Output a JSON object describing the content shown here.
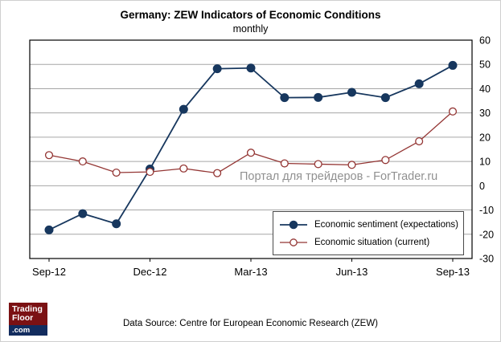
{
  "title": "Germany: ZEW Indicators of Economic Conditions",
  "subtitle": "monthly",
  "watermark": "Портал для трейдеров - ForTrader.ru",
  "footer": {
    "source": "Data Source: Centre for European Economic Research (ZEW)",
    "logo": {
      "line1": "Trading",
      "line2": "Floor",
      "line3": ".com"
    }
  },
  "colors": {
    "sentiment": "#17375e",
    "situation": "#943634",
    "grid": "#a6a6a6",
    "axis": "#000000",
    "logo_red": "#7b1113",
    "logo_blue": "#122c5e"
  },
  "chart_data": {
    "type": "line",
    "x": [
      "Sep-12",
      "Oct-12",
      "Nov-12",
      "Dec-12",
      "Jan-13",
      "Feb-13",
      "Mar-13",
      "Apr-13",
      "May-13",
      "Jun-13",
      "Jul-13",
      "Aug-13",
      "Sep-13"
    ],
    "x_tick_labels": [
      "Sep-12",
      "Dec-12",
      "Mar-13",
      "Jun-13",
      "Sep-13"
    ],
    "x_tick_indices": [
      0,
      3,
      6,
      9,
      12
    ],
    "ylim": [
      -30,
      60
    ],
    "y_ticks": [
      60,
      50,
      40,
      30,
      20,
      10,
      0,
      -10,
      -20,
      -30
    ],
    "grid": true,
    "legend_position": "lower right",
    "series": [
      {
        "name": "Economic sentiment (expectations)",
        "marker": "filled",
        "color": "#17375e",
        "values": [
          -18.2,
          -11.5,
          -15.7,
          6.9,
          31.5,
          48.2,
          48.5,
          36.3,
          36.4,
          38.5,
          36.3,
          42.0,
          49.6
        ]
      },
      {
        "name": "Economic situation (current)",
        "marker": "open",
        "color": "#943634",
        "values": [
          12.6,
          10.0,
          5.4,
          5.7,
          7.1,
          5.2,
          13.6,
          9.2,
          8.9,
          8.6,
          10.6,
          18.3,
          30.6
        ]
      }
    ]
  }
}
